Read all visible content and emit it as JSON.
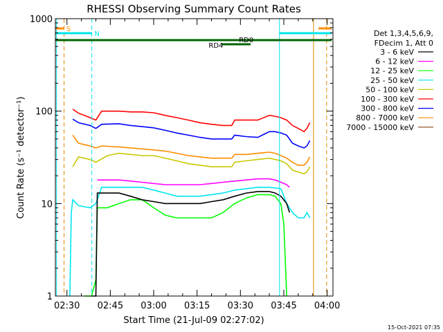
{
  "footer_timestamp": "15-Oct-2021 07:35",
  "legend": {
    "header_line1": "Det 1,3,4,5,6,9,",
    "header_line2": "FDecim 1, Att 0"
  },
  "markers": {
    "saa_label": "S",
    "night_label": "N",
    "rd0_label": "RD0",
    "rd4_label": "RD4"
  },
  "colors": {
    "saa": "#ff8c00",
    "night": "#00e5ee",
    "decim": "#006400",
    "vline_orange": "#e08a00"
  },
  "chart_data": {
    "type": "line",
    "title": "RHESSI Observing Summary Count Rates",
    "xlabel": "Start Time (21-Jul-09 02:27:02)",
    "ylabel": "Count Rate (s⁻¹ detector⁻¹)",
    "yscale": "log",
    "ylim": [
      1,
      1000
    ],
    "y_ticks": [
      1,
      10,
      100,
      1000
    ],
    "y_tick_labels": [
      "1",
      "10",
      "100",
      "1000"
    ],
    "xlim_minutes": [
      146.0,
      242.0
    ],
    "x_ticks": [
      150,
      165,
      180,
      195,
      210,
      225,
      240
    ],
    "x_tick_labels": [
      "02:30",
      "02:45",
      "03:00",
      "03:15",
      "03:30",
      "03:45",
      "04:00"
    ],
    "series": [
      {
        "name": "3 - 6 keV",
        "color": "#000000",
        "points": [
          [
            158.5,
            1
          ],
          [
            160,
            1
          ],
          [
            160.5,
            13
          ],
          [
            168,
            13
          ],
          [
            172,
            12
          ],
          [
            176,
            11
          ],
          [
            180,
            10.5
          ],
          [
            184,
            10
          ],
          [
            188,
            10
          ],
          [
            192,
            10
          ],
          [
            196,
            10
          ],
          [
            200,
            10.5
          ],
          [
            204,
            11
          ],
          [
            208,
            12
          ],
          [
            212,
            13
          ],
          [
            216,
            13.5
          ],
          [
            220,
            13.5
          ],
          [
            222,
            13
          ],
          [
            224,
            12
          ],
          [
            226,
            10
          ],
          [
            227,
            8
          ]
        ]
      },
      {
        "name": "6 - 12 keV",
        "color": "#ff00ff",
        "points": [
          [
            160.5,
            18
          ],
          [
            168,
            18
          ],
          [
            172,
            17.5
          ],
          [
            176,
            17
          ],
          [
            180,
            16.5
          ],
          [
            184,
            16
          ],
          [
            188,
            16
          ],
          [
            192,
            16
          ],
          [
            196,
            16
          ],
          [
            200,
            16.5
          ],
          [
            204,
            17
          ],
          [
            208,
            17.5
          ],
          [
            212,
            18
          ],
          [
            216,
            18.5
          ],
          [
            220,
            18.5
          ],
          [
            222,
            18
          ],
          [
            224,
            17
          ],
          [
            226,
            16
          ],
          [
            227,
            15
          ]
        ]
      },
      {
        "name": "12 - 25 keV",
        "color": "#00ff00",
        "points": [
          [
            156,
            1
          ],
          [
            158.5,
            1
          ],
          [
            160,
            1.5
          ],
          [
            160.5,
            9
          ],
          [
            164,
            9
          ],
          [
            168,
            10
          ],
          [
            172,
            11
          ],
          [
            176,
            11
          ],
          [
            178,
            10
          ],
          [
            180,
            9
          ],
          [
            184,
            7.5
          ],
          [
            188,
            7
          ],
          [
            192,
            7
          ],
          [
            196,
            7
          ],
          [
            200,
            7
          ],
          [
            204,
            8
          ],
          [
            208,
            10
          ],
          [
            212,
            11.5
          ],
          [
            216,
            12.5
          ],
          [
            220,
            12.5
          ],
          [
            222,
            12
          ],
          [
            224,
            10
          ],
          [
            225,
            6
          ],
          [
            226,
            1
          ]
        ]
      },
      {
        "name": "25 - 50 keV",
        "color": "#00e5ee",
        "points": [
          [
            151,
            1
          ],
          [
            151.5,
            8
          ],
          [
            152,
            11
          ],
          [
            154,
            9.5
          ],
          [
            158,
            9
          ],
          [
            160,
            10
          ],
          [
            162,
            15
          ],
          [
            168,
            15
          ],
          [
            172,
            15
          ],
          [
            176,
            15
          ],
          [
            180,
            14
          ],
          [
            184,
            13
          ],
          [
            188,
            12
          ],
          [
            192,
            12
          ],
          [
            196,
            12
          ],
          [
            200,
            12.5
          ],
          [
            204,
            13
          ],
          [
            208,
            14
          ],
          [
            212,
            14.5
          ],
          [
            216,
            15
          ],
          [
            220,
            15
          ],
          [
            224,
            14.5
          ],
          [
            226,
            10
          ],
          [
            228,
            8
          ],
          [
            230,
            7
          ],
          [
            232,
            7
          ],
          [
            233,
            8
          ],
          [
            234,
            7
          ]
        ]
      },
      {
        "name": "50 - 100 keV",
        "color": "#c8c800",
        "points": [
          [
            152,
            25
          ],
          [
            154,
            32
          ],
          [
            158,
            30
          ],
          [
            160,
            28
          ],
          [
            164,
            33
          ],
          [
            168,
            35
          ],
          [
            172,
            34
          ],
          [
            176,
            33
          ],
          [
            180,
            33
          ],
          [
            184,
            31
          ],
          [
            188,
            29
          ],
          [
            192,
            27
          ],
          [
            196,
            26
          ],
          [
            200,
            25
          ],
          [
            204,
            25
          ],
          [
            207,
            25
          ],
          [
            208,
            28
          ],
          [
            212,
            29
          ],
          [
            216,
            30
          ],
          [
            220,
            31
          ],
          [
            224,
            29
          ],
          [
            226,
            27
          ],
          [
            228,
            23
          ],
          [
            230,
            22
          ],
          [
            232,
            21
          ],
          [
            233,
            22
          ],
          [
            234,
            25
          ]
        ]
      },
      {
        "name": "100 - 300 keV",
        "color": "#ff0000",
        "points": [
          [
            152,
            105
          ],
          [
            154,
            95
          ],
          [
            158,
            85
          ],
          [
            160,
            80
          ],
          [
            162,
            100
          ],
          [
            168,
            100
          ],
          [
            172,
            98
          ],
          [
            176,
            98
          ],
          [
            180,
            96
          ],
          [
            184,
            90
          ],
          [
            188,
            85
          ],
          [
            192,
            80
          ],
          [
            196,
            75
          ],
          [
            200,
            72
          ],
          [
            204,
            70
          ],
          [
            207,
            70
          ],
          [
            208,
            80
          ],
          [
            212,
            80
          ],
          [
            216,
            80
          ],
          [
            220,
            90
          ],
          [
            222,
            88
          ],
          [
            224,
            85
          ],
          [
            226,
            80
          ],
          [
            228,
            70
          ],
          [
            230,
            65
          ],
          [
            232,
            60
          ],
          [
            233,
            65
          ],
          [
            234,
            75
          ]
        ]
      },
      {
        "name": "300 - 800 keV",
        "color": "#0000ff",
        "points": [
          [
            152,
            82
          ],
          [
            154,
            75
          ],
          [
            158,
            70
          ],
          [
            160,
            65
          ],
          [
            162,
            72
          ],
          [
            168,
            73
          ],
          [
            172,
            70
          ],
          [
            176,
            68
          ],
          [
            180,
            66
          ],
          [
            184,
            62
          ],
          [
            188,
            58
          ],
          [
            192,
            55
          ],
          [
            196,
            52
          ],
          [
            200,
            50
          ],
          [
            204,
            50
          ],
          [
            207,
            50
          ],
          [
            208,
            55
          ],
          [
            212,
            53
          ],
          [
            216,
            52
          ],
          [
            220,
            60
          ],
          [
            222,
            60
          ],
          [
            224,
            58
          ],
          [
            226,
            55
          ],
          [
            228,
            45
          ],
          [
            230,
            42
          ],
          [
            232,
            40
          ],
          [
            233,
            42
          ],
          [
            234,
            48
          ]
        ]
      },
      {
        "name": "800 - 7000 keV",
        "color": "#ff8c00",
        "points": [
          [
            152,
            55
          ],
          [
            154,
            45
          ],
          [
            158,
            42
          ],
          [
            160,
            40
          ],
          [
            162,
            42
          ],
          [
            168,
            41
          ],
          [
            172,
            40
          ],
          [
            176,
            39
          ],
          [
            180,
            38
          ],
          [
            184,
            37
          ],
          [
            188,
            35
          ],
          [
            192,
            33
          ],
          [
            196,
            32
          ],
          [
            200,
            31
          ],
          [
            204,
            31
          ],
          [
            207,
            31
          ],
          [
            208,
            34
          ],
          [
            212,
            34
          ],
          [
            216,
            35
          ],
          [
            220,
            36
          ],
          [
            222,
            35
          ],
          [
            224,
            33
          ],
          [
            226,
            31
          ],
          [
            228,
            28
          ],
          [
            230,
            26
          ],
          [
            232,
            26
          ],
          [
            233,
            28
          ],
          [
            234,
            32
          ]
        ]
      },
      {
        "name": "7000 - 15000 keV",
        "color": "#8b4513",
        "points": []
      }
    ]
  }
}
